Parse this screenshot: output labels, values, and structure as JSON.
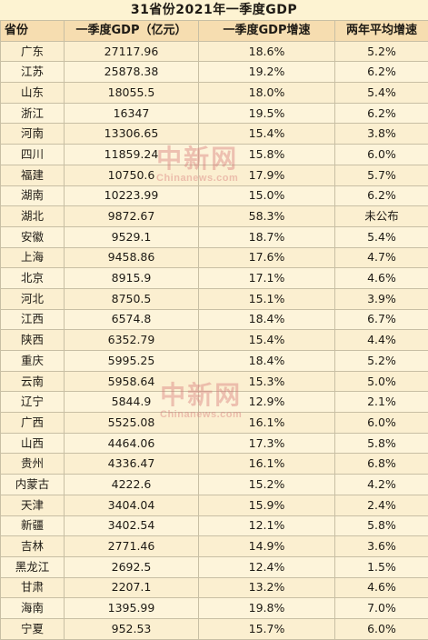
{
  "title": "31省份2021年一季度GDP",
  "headers": [
    "省份",
    "一季度GDP（亿元）",
    "一季度GDP增速",
    "两年平均增速"
  ],
  "rows": [
    [
      "广东",
      "27117.96",
      "18.6%",
      "5.2%"
    ],
    [
      "江苏",
      "25878.38",
      "19.2%",
      "6.2%"
    ],
    [
      "山东",
      "18055.5",
      "18.0%",
      "5.4%"
    ],
    [
      "浙江",
      "16347",
      "19.5%",
      "6.2%"
    ],
    [
      "河南",
      "13306.65",
      "15.4%",
      "3.8%"
    ],
    [
      "四川",
      "11859.24",
      "15.8%",
      "6.0%"
    ],
    [
      "福建",
      "10750.6",
      "17.9%",
      "5.7%"
    ],
    [
      "湖南",
      "10223.99",
      "15.0%",
      "6.2%"
    ],
    [
      "湖北",
      "9872.67",
      "58.3%",
      "未公布"
    ],
    [
      "安徽",
      "9529.1",
      "18.7%",
      "5.4%"
    ],
    [
      "上海",
      "9458.86",
      "17.6%",
      "4.7%"
    ],
    [
      "北京",
      "8915.9",
      "17.1%",
      "4.6%"
    ],
    [
      "河北",
      "8750.5",
      "15.1%",
      "3.9%"
    ],
    [
      "江西",
      "6574.8",
      "18.4%",
      "6.7%"
    ],
    [
      "陕西",
      "6352.79",
      "15.4%",
      "4.4%"
    ],
    [
      "重庆",
      "5995.25",
      "18.4%",
      "5.2%"
    ],
    [
      "云南",
      "5958.64",
      "15.3%",
      "5.0%"
    ],
    [
      "辽宁",
      "5844.9",
      "12.9%",
      "2.1%"
    ],
    [
      "广西",
      "5525.08",
      "16.1%",
      "6.0%"
    ],
    [
      "山西",
      "4464.06",
      "17.3%",
      "5.8%"
    ],
    [
      "贵州",
      "4336.47",
      "16.1%",
      "6.8%"
    ],
    [
      "内蒙古",
      "4222.6",
      "15.2%",
      "4.2%"
    ],
    [
      "天津",
      "3404.04",
      "15.9%",
      "2.4%"
    ],
    [
      "新疆",
      "3402.54",
      "12.1%",
      "5.8%"
    ],
    [
      "吉林",
      "2771.46",
      "14.9%",
      "3.6%"
    ],
    [
      "黑龙江",
      "2692.5",
      "12.4%",
      "1.5%"
    ],
    [
      "甘肃",
      "2207.1",
      "13.2%",
      "4.6%"
    ],
    [
      "海南",
      "1395.99",
      "19.8%",
      "7.0%"
    ],
    [
      "宁夏",
      "952.53",
      "15.7%",
      "6.0%"
    ]
  ],
  "watermark": {
    "logo_text": "中新网",
    "site": "Chinanews.com"
  },
  "colors": {
    "background": "#fdf3d2",
    "header_bg": "#f6ddb0",
    "border": "#c8bfa4",
    "watermark": "#d67878"
  }
}
